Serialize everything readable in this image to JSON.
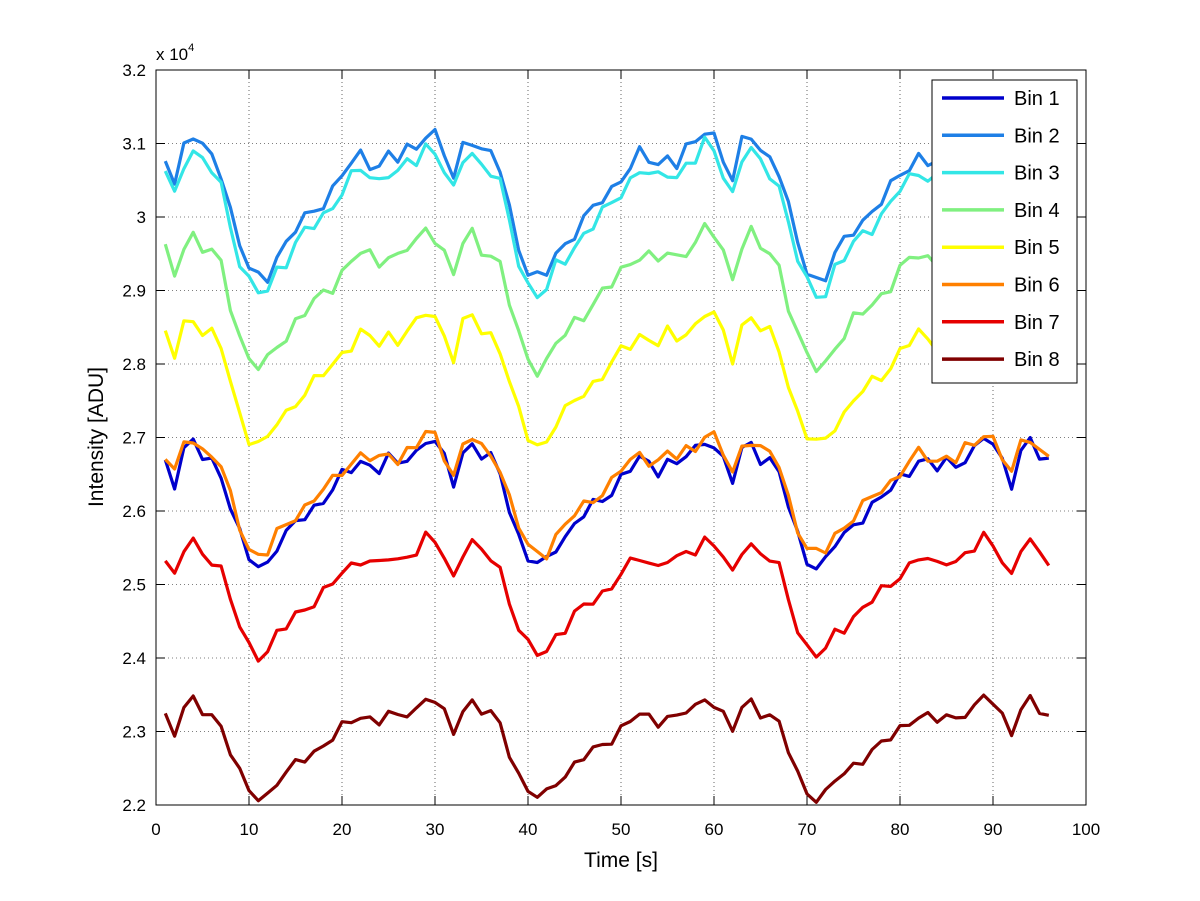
{
  "chart_data": {
    "type": "line",
    "title": "",
    "xlabel": "Time [s]",
    "ylabel": "Intensity [ADU]",
    "y_exponent_label": "x 10",
    "y_exponent_power": "4",
    "xlim": [
      0,
      100
    ],
    "ylim": [
      2.2,
      3.2
    ],
    "x_ticks": [
      0,
      10,
      20,
      30,
      40,
      50,
      60,
      70,
      80,
      90,
      100
    ],
    "y_ticks": [
      2.2,
      2.3,
      2.4,
      2.5,
      2.6,
      2.7,
      2.8,
      2.9,
      3.0,
      3.1,
      3.2
    ],
    "x_tick_labels": [
      "0",
      "10",
      "20",
      "30",
      "40",
      "50",
      "60",
      "70",
      "80",
      "90",
      "100"
    ],
    "y_tick_labels": [
      "2.2",
      "2.3",
      "2.4",
      "2.5",
      "2.6",
      "2.7",
      "2.8",
      "2.9",
      "3",
      "3.1",
      "3.2"
    ],
    "grid": true,
    "legend_position": "top-right",
    "base_shape": [
      0.0,
      0.35,
      0.45,
      0.3,
      0.25,
      0.1,
      -0.3,
      -0.65,
      -0.9,
      -1.0,
      -0.95,
      -0.75,
      -0.65,
      -0.5,
      -0.4,
      -0.3,
      -0.2,
      -0.1,
      0.05,
      0.15,
      0.25,
      0.2,
      0.15,
      0.25,
      0.2,
      0.3,
      0.35,
      0.5,
      0.45,
      0.25,
      0.0
    ],
    "series": [
      {
        "name": "Bin 1",
        "color": "#0000cc",
        "mean": 2.64,
        "amp": 0.115,
        "start_offset": 0.07
      },
      {
        "name": "Bin 2",
        "color": "#1e7fe6",
        "mean": 3.05,
        "amp": 0.135,
        "start_offset": 0.09
      },
      {
        "name": "Bin 3",
        "color": "#33e6e6",
        "mean": 3.03,
        "amp": 0.135,
        "start_offset": 0.09
      },
      {
        "name": "Bin 4",
        "color": "#80f080",
        "mean": 2.92,
        "amp": 0.125,
        "start_offset": 0.08
      },
      {
        "name": "Bin 5",
        "color": "#ffff00",
        "mean": 2.81,
        "amp": 0.12,
        "start_offset": 0.07
      },
      {
        "name": "Bin 6",
        "color": "#ff8000",
        "mean": 2.65,
        "amp": 0.11,
        "start_offset": 0.065
      },
      {
        "name": "Bin 7",
        "color": "#e60000",
        "mean": 2.51,
        "amp": 0.105,
        "start_offset": 0.06
      },
      {
        "name": "Bin 8",
        "color": "#800000",
        "mean": 2.3,
        "amp": 0.09,
        "start_offset": 0.055
      }
    ]
  }
}
